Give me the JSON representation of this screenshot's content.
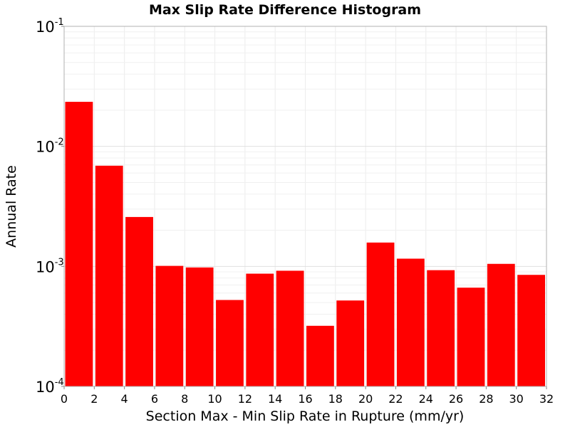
{
  "chart_data": {
    "type": "bar",
    "title": "Max Slip Rate Difference Histogram",
    "xlabel": "Section Max - Min Slip Rate in Rupture (mm/yr)",
    "ylabel": "Annual Rate",
    "yscale": "log",
    "xlim": [
      0,
      32
    ],
    "ylim": [
      0.0001,
      0.1
    ],
    "xticks": [
      "0",
      "2",
      "4",
      "6",
      "8",
      "10",
      "12",
      "14",
      "16",
      "18",
      "20",
      "22",
      "24",
      "26",
      "28",
      "30",
      "32"
    ],
    "yticks": [
      {
        "base": "10",
        "exp": "-4",
        "value": 0.0001
      },
      {
        "base": "10",
        "exp": "-3",
        "value": 0.001
      },
      {
        "base": "10",
        "exp": "-2",
        "value": 0.01
      },
      {
        "base": "10",
        "exp": "-1",
        "value": 0.1
      }
    ],
    "grid": true,
    "bar_color": "#ff0000",
    "bins": [
      {
        "x0": 0,
        "x1": 2,
        "value": 0.0235
      },
      {
        "x0": 2,
        "x1": 4,
        "value": 0.0069
      },
      {
        "x0": 4,
        "x1": 6,
        "value": 0.00258
      },
      {
        "x0": 6,
        "x1": 8,
        "value": 0.00101
      },
      {
        "x0": 8,
        "x1": 10,
        "value": 0.00098
      },
      {
        "x0": 10,
        "x1": 12,
        "value": 0.000525
      },
      {
        "x0": 12,
        "x1": 14,
        "value": 0.00087
      },
      {
        "x0": 14,
        "x1": 16,
        "value": 0.00092
      },
      {
        "x0": 16,
        "x1": 18,
        "value": 0.00032
      },
      {
        "x0": 18,
        "x1": 20,
        "value": 0.00052
      },
      {
        "x0": 20,
        "x1": 22,
        "value": 0.00158
      },
      {
        "x0": 22,
        "x1": 24,
        "value": 0.00116
      },
      {
        "x0": 24,
        "x1": 26,
        "value": 0.00093
      },
      {
        "x0": 26,
        "x1": 28,
        "value": 0.000665
      },
      {
        "x0": 28,
        "x1": 30,
        "value": 0.00105
      },
      {
        "x0": 30,
        "x1": 32,
        "value": 0.00085
      }
    ]
  }
}
